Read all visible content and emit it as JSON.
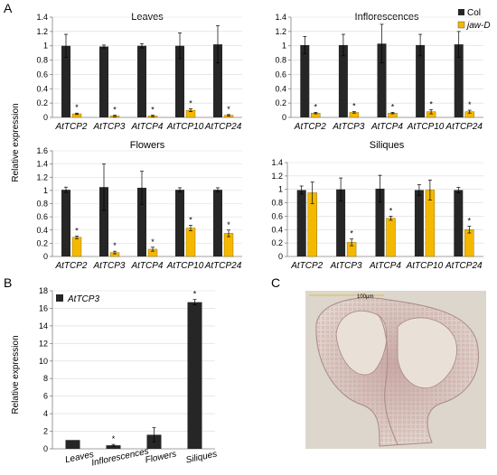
{
  "panels": {
    "A": "A",
    "B": "B",
    "C": "C"
  },
  "colors": {
    "col": "#262626",
    "jaw": "#f5b800",
    "axis": "#808080",
    "grid": "#d9d9d9"
  },
  "legend": {
    "col": "Col",
    "jaw": "jaw-D"
  },
  "ylabel": "Relative expression",
  "micrograph": {
    "scale_bar_label": "100μm"
  },
  "chart_data": [
    {
      "type": "bar",
      "title": "Leaves",
      "categories": [
        "AtTCP2",
        "AtTCP3",
        "AtTCP4",
        "AtTCP10",
        "AtTCP24"
      ],
      "ylim": [
        0,
        1.4
      ],
      "yticks": [
        "0",
        "0.2",
        "0.4",
        "0.6",
        "0.8",
        "1",
        "1.2",
        "1.4"
      ],
      "series": [
        {
          "name": "Col",
          "values": [
            1.0,
            0.99,
            1.0,
            1.0,
            1.02
          ],
          "errors": [
            0.16,
            0.02,
            0.03,
            0.18,
            0.26
          ]
        },
        {
          "name": "jaw-D",
          "values": [
            0.05,
            0.02,
            0.02,
            0.1,
            0.03
          ],
          "errors": [
            0.01,
            0.01,
            0.01,
            0.02,
            0.01
          ]
        }
      ],
      "annotations": [
        "*",
        "*",
        "*",
        "*",
        "*"
      ]
    },
    {
      "type": "bar",
      "title": "Inflorescences",
      "categories": [
        "AtTCP2",
        "AtTCP3",
        "AtTCP4",
        "AtTCP10",
        "AtTCP24"
      ],
      "ylim": [
        0,
        1.4
      ],
      "yticks": [
        "0",
        "0.2",
        "0.4",
        "0.6",
        "0.8",
        "1",
        "1.2",
        "1.4"
      ],
      "series": [
        {
          "name": "Col",
          "values": [
            1.01,
            1.01,
            1.03,
            1.01,
            1.02
          ],
          "errors": [
            0.12,
            0.15,
            0.27,
            0.15,
            0.18
          ]
        },
        {
          "name": "jaw-D",
          "values": [
            0.06,
            0.07,
            0.06,
            0.08,
            0.08
          ],
          "errors": [
            0.01,
            0.01,
            0.01,
            0.03,
            0.02
          ]
        }
      ],
      "annotations": [
        "*",
        "*",
        "*",
        "*",
        "*"
      ]
    },
    {
      "type": "bar",
      "title": "Flowers",
      "categories": [
        "AtTCP2",
        "AtTCP3",
        "AtTCP4",
        "AtTCP10",
        "AtTCP24"
      ],
      "ylim": [
        0,
        1.6
      ],
      "yticks": [
        "0",
        "0.2",
        "0.4",
        "0.6",
        "0.8",
        "1",
        "1.2",
        "1.4",
        "1.6"
      ],
      "series": [
        {
          "name": "Col",
          "values": [
            1.01,
            1.05,
            1.04,
            1.01,
            1.01
          ],
          "errors": [
            0.04,
            0.35,
            0.25,
            0.03,
            0.03
          ]
        },
        {
          "name": "jaw-D",
          "values": [
            0.29,
            0.06,
            0.11,
            0.43,
            0.35
          ],
          "errors": [
            0.02,
            0.02,
            0.03,
            0.04,
            0.05
          ]
        }
      ],
      "annotations": [
        "*",
        "*",
        "*",
        "*",
        "*"
      ]
    },
    {
      "type": "bar",
      "title": "Siliques",
      "categories": [
        "AtTCP2",
        "AtTCP3",
        "AtTCP4",
        "AtTCP10",
        "AtTCP24"
      ],
      "ylim": [
        0,
        1.4
      ],
      "yticks": [
        "0",
        "0.2",
        "0.4",
        "0.6",
        "0.8",
        "1",
        "1.2",
        "1.4"
      ],
      "series": [
        {
          "name": "Col",
          "values": [
            0.99,
            1.0,
            1.01,
            0.99,
            0.99
          ],
          "errors": [
            0.06,
            0.17,
            0.2,
            0.08,
            0.04
          ]
        },
        {
          "name": "jaw-D",
          "values": [
            0.95,
            0.21,
            0.57,
            0.99,
            0.4
          ],
          "errors": [
            0.16,
            0.05,
            0.03,
            0.15,
            0.05
          ]
        }
      ],
      "annotations": [
        "",
        "*",
        "*",
        "",
        "*"
      ]
    },
    {
      "type": "bar",
      "title": "",
      "categories": [
        "Leaves",
        "Inflorescences",
        "Flowers",
        "Siliques"
      ],
      "ylim": [
        0,
        18
      ],
      "yticks": [
        "0",
        "2",
        "4",
        "6",
        "8",
        "10",
        "12",
        "14",
        "16",
        "18"
      ],
      "series": [
        {
          "name": "AtTCP3",
          "values": [
            1.0,
            0.4,
            1.6,
            16.7
          ],
          "errors": [
            0.0,
            0.1,
            0.8,
            0.3
          ]
        }
      ],
      "annotations": [
        "",
        "*",
        "",
        "*"
      ]
    }
  ]
}
